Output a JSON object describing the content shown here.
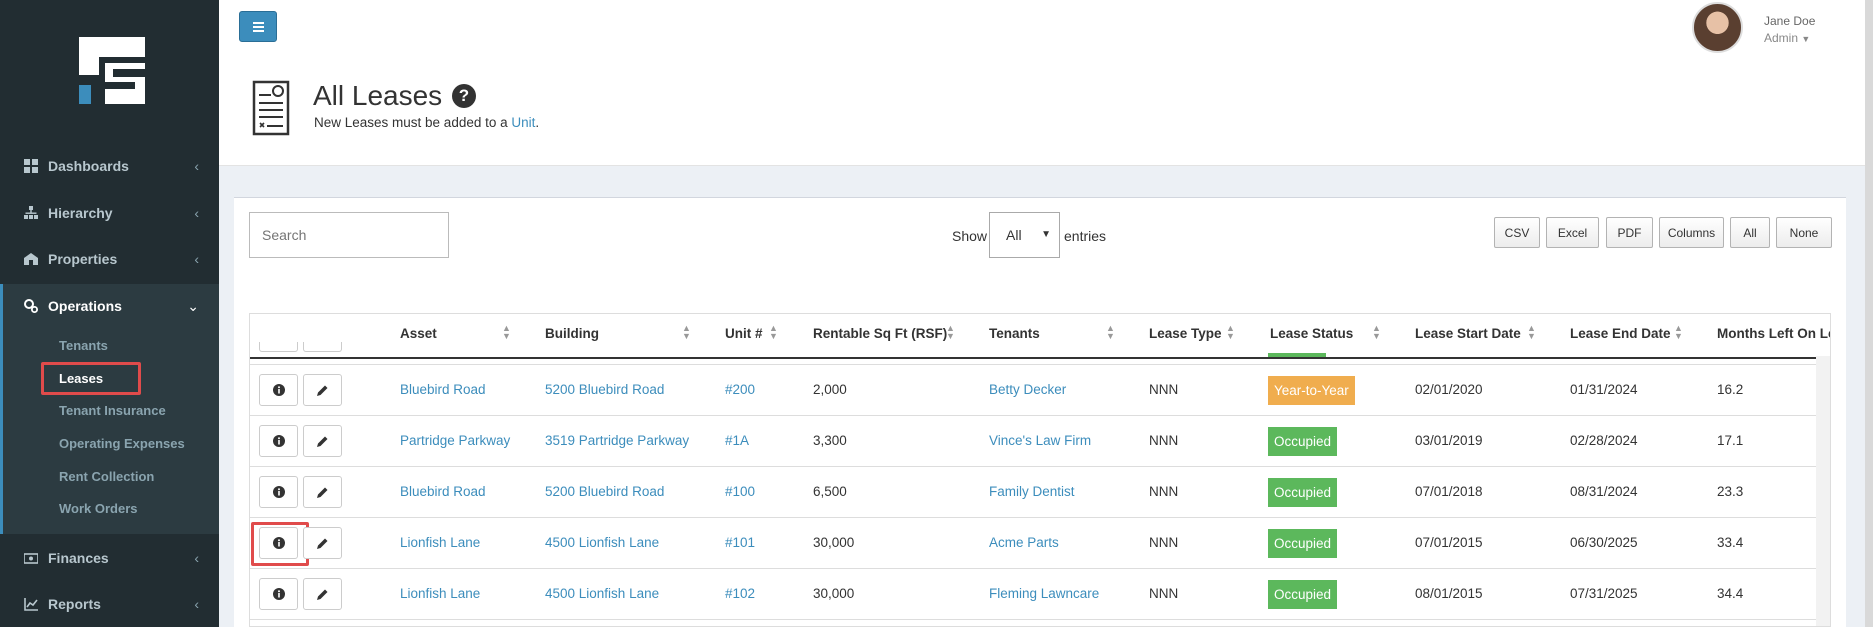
{
  "sidebar": {
    "nav": [
      {
        "label": "Dashboards",
        "icon": "dashboard-icon"
      },
      {
        "label": "Hierarchy",
        "icon": "sitemap-icon"
      },
      {
        "label": "Properties",
        "icon": "building-icon"
      },
      {
        "label": "Operations",
        "icon": "cogs-icon"
      },
      {
        "label": "Finances",
        "icon": "money-icon"
      },
      {
        "label": "Reports",
        "icon": "line-chart-icon"
      }
    ],
    "operations_sub": [
      "Tenants",
      "Leases",
      "Tenant Insurance",
      "Operating Expenses",
      "Rent Collection",
      "Work Orders"
    ],
    "active_sub": "Leases"
  },
  "user": {
    "name": "Jane Doe",
    "role": "Admin"
  },
  "page": {
    "title": "All Leases",
    "subtitle_prefix": "New Leases must be added to a ",
    "subtitle_link": "Unit",
    "subtitle_suffix": "."
  },
  "controls": {
    "search_placeholder": "Search",
    "show_label": "Show",
    "show_value": "All",
    "entries_label": "entries",
    "buttons": [
      "CSV",
      "Excel",
      "PDF",
      "Columns",
      "All",
      "None"
    ]
  },
  "table": {
    "columns": [
      "Asset",
      "Building",
      "Unit #",
      "Rentable Sq Ft (RSF)",
      "Tenants",
      "Lease Type",
      "Lease Status",
      "Lease Start Date",
      "Lease End Date",
      "Months Left On Le"
    ],
    "rows": [
      {
        "asset": "Bluebird Road",
        "building": "5200 Bluebird Road",
        "unit": "#200",
        "rsf": "2,000",
        "tenant": "Betty Decker",
        "type": "NNN",
        "status": "Year-to-Year",
        "start": "02/01/2020",
        "end": "01/31/2024",
        "months": "16.2"
      },
      {
        "asset": "Partridge Parkway",
        "building": "3519 Partridge Parkway",
        "unit": "#1A",
        "rsf": "3,300",
        "tenant": "Vince's Law Firm",
        "type": "NNN",
        "status": "Occupied",
        "start": "03/01/2019",
        "end": "02/28/2024",
        "months": "17.1"
      },
      {
        "asset": "Bluebird Road",
        "building": "5200 Bluebird Road",
        "unit": "#100",
        "rsf": "6,500",
        "tenant": "Family Dentist",
        "type": "NNN",
        "status": "Occupied",
        "start": "07/01/2018",
        "end": "08/31/2024",
        "months": "23.3"
      },
      {
        "asset": "Lionfish Lane",
        "building": "4500 Lionfish Lane",
        "unit": "#101",
        "rsf": "30,000",
        "tenant": "Acme Parts",
        "type": "NNN",
        "status": "Occupied",
        "start": "07/01/2015",
        "end": "06/30/2025",
        "months": "33.4"
      },
      {
        "asset": "Lionfish Lane",
        "building": "4500 Lionfish Lane",
        "unit": "#102",
        "rsf": "30,000",
        "tenant": "Fleming Lawncare",
        "type": "NNN",
        "status": "Occupied",
        "start": "08/01/2015",
        "end": "07/31/2025",
        "months": "34.4"
      }
    ]
  },
  "colors": {
    "sidebar_bg": "#222d32",
    "accent": "#3c8dbc",
    "status_occupied": "#5cb85c",
    "status_year_to_year": "#f0ad4e",
    "highlight": "#e04b4b"
  }
}
